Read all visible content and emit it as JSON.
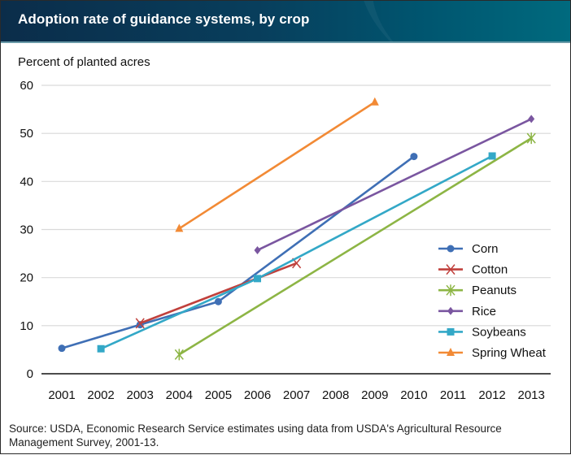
{
  "header": {
    "title": "Adoption rate of guidance systems, by crop"
  },
  "source": "Source: USDA, Economic Research Service estimates using data from USDA's Agricultural Resource Management Survey, 2001-13.",
  "chart_data": {
    "type": "line",
    "title": "Adoption rate of guidance systems, by crop",
    "xlabel": "",
    "ylabel": "Percent of planted acres",
    "categories": [
      "2001",
      "2002",
      "2003",
      "2004",
      "2005",
      "2006",
      "2007",
      "2008",
      "2009",
      "2010",
      "2011",
      "2012",
      "2013"
    ],
    "ylim": [
      0,
      60
    ],
    "yticks": [
      0,
      10,
      20,
      30,
      40,
      50,
      60
    ],
    "grid": true,
    "legend_position": "right",
    "series": [
      {
        "name": "Corn",
        "color": "#3f6fb5",
        "marker": "circle",
        "points": [
          [
            "2001",
            5.3
          ],
          [
            "2003",
            10.2
          ],
          [
            "2005",
            15.0
          ],
          [
            "2010",
            45.2
          ]
        ]
      },
      {
        "name": "Cotton",
        "color": "#c0403c",
        "marker": "x",
        "points": [
          [
            "2003",
            10.5
          ],
          [
            "2007",
            23.0
          ]
        ]
      },
      {
        "name": "Peanuts",
        "color": "#8db545",
        "marker": "star",
        "points": [
          [
            "2004",
            4.0
          ],
          [
            "2013",
            49.0
          ]
        ]
      },
      {
        "name": "Rice",
        "color": "#7a56a0",
        "marker": "diamond",
        "points": [
          [
            "2006",
            25.7
          ],
          [
            "2013",
            53.0
          ]
        ]
      },
      {
        "name": "Soybeans",
        "color": "#33a8c7",
        "marker": "square",
        "points": [
          [
            "2002",
            5.2
          ],
          [
            "2006",
            19.8
          ],
          [
            "2012",
            45.3
          ]
        ]
      },
      {
        "name": "Spring Wheat",
        "color": "#f28a35",
        "marker": "triangle",
        "points": [
          [
            "2004",
            30.2
          ],
          [
            "2009",
            56.5
          ]
        ]
      }
    ]
  }
}
